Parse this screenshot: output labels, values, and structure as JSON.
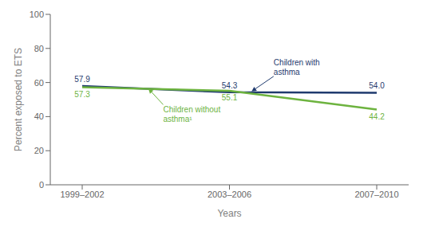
{
  "chart_data": {
    "type": "line",
    "categories": [
      "1999–2002",
      "2003–2006",
      "2007–2010"
    ],
    "series": [
      {
        "name": "Children with\nasthma",
        "color": "#1f3a6e",
        "values": [
          57.9,
          54.3,
          54.0
        ],
        "value_labels": [
          "57.9",
          "54.3",
          "54.0"
        ]
      },
      {
        "name": "Children without\nasthma¹",
        "color": "#6db33f",
        "values": [
          57.3,
          55.1,
          44.2
        ]
      }
    ],
    "xlabel": "Years",
    "ylabel": "Percent exposed to ETS",
    "ylim": [
      0,
      100
    ],
    "yticks": [
      0,
      20,
      40,
      60,
      80,
      100
    ],
    "grid": false,
    "data_labels": true
  }
}
